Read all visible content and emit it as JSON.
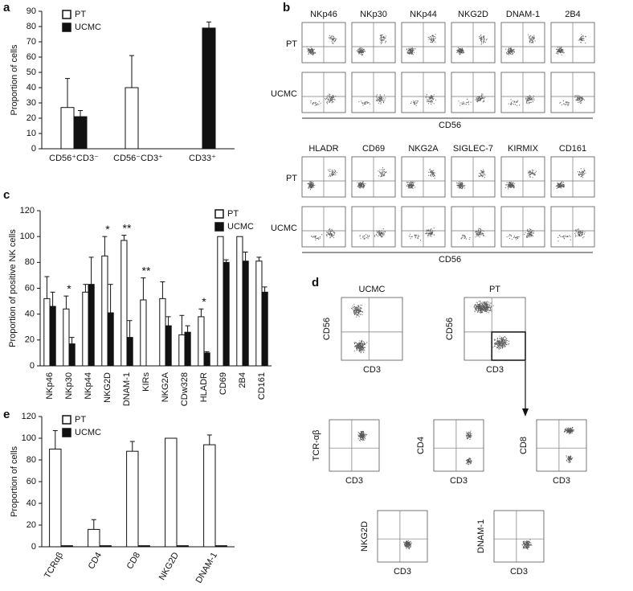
{
  "chart_data": [
    {
      "type": "bar",
      "label": "a",
      "y_label": "Proportion of cells",
      "categories": [
        "CD56⁺CD3⁻",
        "CD56⁻CD3⁺",
        "CD33⁺"
      ],
      "series": [
        {
          "name": "PT",
          "color": "#ffffff",
          "values": [
            27,
            40,
            null
          ],
          "errors": [
            19,
            21,
            null
          ]
        },
        {
          "name": "UCMC",
          "color": "#111111",
          "values": [
            21,
            null,
            79
          ],
          "errors": [
            4,
            null,
            4
          ]
        }
      ],
      "ylim": [
        0,
        90
      ],
      "yticks": [
        0,
        10,
        20,
        30,
        40,
        50,
        60,
        70,
        80,
        90
      ],
      "legend": "upper left"
    },
    {
      "type": "bar",
      "label": "c",
      "y_label": "Proportion of positive NK cells",
      "categories": [
        "NKp46",
        "NKp30",
        "NKp44",
        "NKG2D",
        "DNAM-1",
        "KIRs",
        "NKG2A",
        "CDw328",
        "HLADR",
        "CD69",
        "2B4",
        "CD161"
      ],
      "series": [
        {
          "name": "PT",
          "color": "#ffffff",
          "values": [
            52,
            44,
            57,
            85,
            97,
            51,
            52,
            24,
            38,
            100,
            100,
            81
          ],
          "errors": [
            17,
            10,
            6,
            15,
            4,
            17,
            13,
            15,
            6,
            null,
            null,
            3
          ]
        },
        {
          "name": "UCMC",
          "color": "#111111",
          "values": [
            46,
            17,
            63,
            41,
            22,
            null,
            31,
            26,
            10,
            80,
            81,
            57
          ],
          "errors": [
            11,
            5,
            21,
            22,
            13,
            null,
            7,
            5,
            1,
            2,
            7,
            4
          ]
        }
      ],
      "significance": [
        null,
        "*",
        null,
        "*",
        "**",
        "**",
        null,
        null,
        "*",
        null,
        null,
        null
      ],
      "ylim": [
        0,
        120
      ],
      "yticks": [
        0,
        20,
        40,
        60,
        80,
        100,
        120
      ],
      "legend": "upper right"
    },
    {
      "type": "bar",
      "label": "e",
      "y_label": "Proportion of cells",
      "categories": [
        "TCRαβ",
        "CD4",
        "CD8",
        "NKG2D",
        "DNAM-1"
      ],
      "series": [
        {
          "name": "PT",
          "color": "#ffffff",
          "values": [
            90,
            16,
            88,
            100,
            94
          ],
          "errors": [
            17,
            9,
            9,
            null,
            9
          ]
        },
        {
          "name": "UCMC",
          "color": "#111111",
          "values": [
            1,
            1,
            1,
            1,
            1
          ],
          "errors": [
            null,
            null,
            null,
            null,
            null
          ]
        }
      ],
      "ylim": [
        0,
        120
      ],
      "yticks": [
        0,
        20,
        40,
        60,
        80,
        100,
        120
      ],
      "legend": "upper left"
    }
  ],
  "panel_b": {
    "label": "b",
    "rows": [
      "PT",
      "UCMC"
    ],
    "x_label": "CD56",
    "blocks": [
      [
        "NKp46",
        "NKp30",
        "NKp44",
        "NKG2D",
        "DNAM-1",
        "2B4"
      ],
      [
        "HLADR",
        "CD69",
        "NKG2A",
        "SIGLEC-7",
        "KIRMIX",
        "CD161"
      ]
    ]
  },
  "panel_d": {
    "label": "d",
    "top": [
      {
        "title": "UCMC",
        "y": "CD56",
        "x": "CD3"
      },
      {
        "title": "PT",
        "y": "CD56",
        "x": "CD3"
      }
    ],
    "bottom": [
      {
        "y": "TCR-αβ",
        "x": "CD3"
      },
      {
        "y": "CD4",
        "x": "CD3"
      },
      {
        "y": "CD8",
        "x": "CD3"
      },
      {
        "y": "NKG2D",
        "x": "CD3"
      },
      {
        "y": "DNAM-1",
        "x": "CD3"
      }
    ]
  }
}
